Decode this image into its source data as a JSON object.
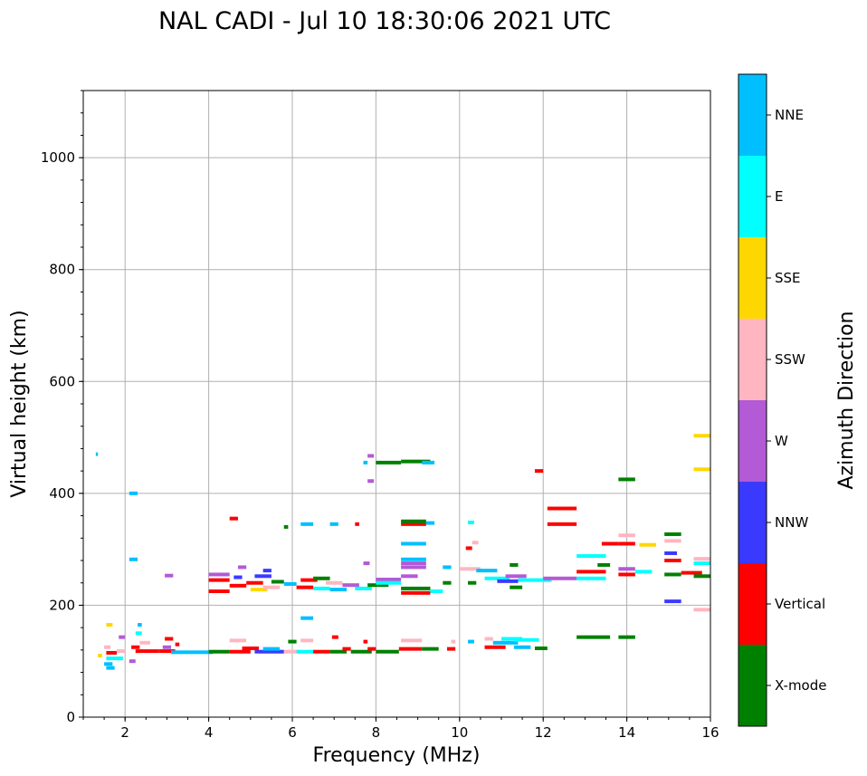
{
  "chart_data": {
    "type": "scatter",
    "title": "NAL CADI - Jul 10 18:30:06 2021 UTC",
    "xlabel": "Frequency (MHz)",
    "ylabel": "Virtual height (km)",
    "xlim": [
      1,
      16
    ],
    "ylim": [
      0,
      1120
    ],
    "xticks": [
      2,
      4,
      6,
      8,
      10,
      12,
      14,
      16
    ],
    "yticks": [
      0,
      200,
      400,
      600,
      800,
      1000
    ],
    "grid": true,
    "colorbar": {
      "label": "Azimuth Direction",
      "categories": [
        {
          "name": "X-mode",
          "color": "#008000"
        },
        {
          "name": "Vertical",
          "color": "#ff0000"
        },
        {
          "name": "NNW",
          "color": "#3a3aff"
        },
        {
          "name": "W",
          "color": "#b35ad6"
        },
        {
          "name": "SSW",
          "color": "#ffb6c1"
        },
        {
          "name": "SSE",
          "color": "#ffd700"
        },
        {
          "name": "E",
          "color": "#00ffff"
        },
        {
          "name": "NNE",
          "color": "#00bfff"
        }
      ]
    },
    "segments": [
      {
        "f0": 1.55,
        "f1": 1.75,
        "h": 88,
        "c": "NNE"
      },
      {
        "f0": 1.5,
        "f1": 1.7,
        "h": 95,
        "c": "NNE"
      },
      {
        "f0": 1.35,
        "f1": 1.45,
        "h": 110,
        "c": "SSE"
      },
      {
        "f0": 1.55,
        "f1": 1.95,
        "h": 105,
        "c": "E"
      },
      {
        "f0": 1.55,
        "f1": 1.8,
        "h": 115,
        "c": "Vertical"
      },
      {
        "f0": 1.5,
        "f1": 1.65,
        "h": 125,
        "c": "SSW"
      },
      {
        "f0": 1.8,
        "f1": 2.0,
        "h": 118,
        "c": "SSW"
      },
      {
        "f0": 1.55,
        "f1": 1.7,
        "h": 165,
        "c": "SSE"
      },
      {
        "f0": 1.85,
        "f1": 2.0,
        "h": 143,
        "c": "W"
      },
      {
        "f0": 2.1,
        "f1": 2.25,
        "h": 100,
        "c": "W"
      },
      {
        "f0": 2.3,
        "f1": 2.4,
        "h": 165,
        "c": "NNE"
      },
      {
        "f0": 2.25,
        "f1": 2.4,
        "h": 150,
        "c": "E"
      },
      {
        "f0": 2.15,
        "f1": 2.35,
        "h": 125,
        "c": "Vertical"
      },
      {
        "f0": 2.25,
        "f1": 2.8,
        "h": 118,
        "c": "Vertical"
      },
      {
        "f0": 2.35,
        "f1": 2.6,
        "h": 133,
        "c": "SSW"
      },
      {
        "f0": 2.8,
        "f1": 3.2,
        "h": 118,
        "c": "Vertical"
      },
      {
        "f0": 2.9,
        "f1": 3.1,
        "h": 125,
        "c": "W"
      },
      {
        "f0": 2.95,
        "f1": 3.15,
        "h": 140,
        "c": "Vertical"
      },
      {
        "f0": 3.1,
        "f1": 4.1,
        "h": 116,
        "c": "NNE"
      },
      {
        "f0": 3.2,
        "f1": 3.3,
        "h": 130,
        "c": "Vertical"
      },
      {
        "f0": 4.0,
        "f1": 4.5,
        "h": 117,
        "c": "X-mode"
      },
      {
        "f0": 4.5,
        "f1": 5.0,
        "h": 117,
        "c": "Vertical"
      },
      {
        "f0": 4.5,
        "f1": 4.9,
        "h": 137,
        "c": "SSW"
      },
      {
        "f0": 4.8,
        "f1": 5.2,
        "h": 123,
        "c": "Vertical"
      },
      {
        "f0": 5.1,
        "f1": 5.8,
        "h": 117,
        "c": "NNW"
      },
      {
        "f0": 5.3,
        "f1": 5.7,
        "h": 122,
        "c": "NNE"
      },
      {
        "f0": 5.8,
        "f1": 6.2,
        "h": 117,
        "c": "SSW"
      },
      {
        "f0": 5.9,
        "f1": 6.1,
        "h": 135,
        "c": "X-mode"
      },
      {
        "f0": 6.1,
        "f1": 6.5,
        "h": 117,
        "c": "E"
      },
      {
        "f0": 6.2,
        "f1": 6.5,
        "h": 137,
        "c": "SSW"
      },
      {
        "f0": 6.5,
        "f1": 6.9,
        "h": 117,
        "c": "Vertical"
      },
      {
        "f0": 6.9,
        "f1": 7.3,
        "h": 117,
        "c": "X-mode"
      },
      {
        "f0": 6.95,
        "f1": 7.1,
        "h": 143,
        "c": "Vertical"
      },
      {
        "f0": 7.2,
        "f1": 7.4,
        "h": 122,
        "c": "Vertical"
      },
      {
        "f0": 7.4,
        "f1": 7.9,
        "h": 117,
        "c": "X-mode"
      },
      {
        "f0": 7.7,
        "f1": 7.8,
        "h": 135,
        "c": "Vertical"
      },
      {
        "f0": 7.8,
        "f1": 8.0,
        "h": 122,
        "c": "Vertical"
      },
      {
        "f0": 8.0,
        "f1": 8.55,
        "h": 117,
        "c": "X-mode"
      },
      {
        "f0": 8.55,
        "f1": 9.1,
        "h": 122,
        "c": "Vertical"
      },
      {
        "f0": 8.6,
        "f1": 9.1,
        "h": 137,
        "c": "SSW"
      },
      {
        "f0": 9.1,
        "f1": 9.5,
        "h": 122,
        "c": "X-mode"
      },
      {
        "f0": 9.7,
        "f1": 9.9,
        "h": 122,
        "c": "Vertical"
      },
      {
        "f0": 9.8,
        "f1": 9.9,
        "h": 135,
        "c": "SSW"
      },
      {
        "f0": 10.2,
        "f1": 10.35,
        "h": 135,
        "c": "NNE"
      },
      {
        "f0": 10.6,
        "f1": 10.8,
        "h": 140,
        "c": "SSW"
      },
      {
        "f0": 10.6,
        "f1": 11.1,
        "h": 125,
        "c": "Vertical"
      },
      {
        "f0": 10.8,
        "f1": 11.4,
        "h": 133,
        "c": "NNE"
      },
      {
        "f0": 11.0,
        "f1": 11.5,
        "h": 140,
        "c": "E"
      },
      {
        "f0": 11.3,
        "f1": 11.9,
        "h": 138,
        "c": "E"
      },
      {
        "f0": 11.3,
        "f1": 11.7,
        "h": 125,
        "c": "NNE"
      },
      {
        "f0": 11.8,
        "f1": 12.1,
        "h": 123,
        "c": "X-mode"
      },
      {
        "f0": 12.8,
        "f1": 13.6,
        "h": 143,
        "c": "X-mode"
      },
      {
        "f0": 13.8,
        "f1": 14.2,
        "h": 143,
        "c": "X-mode"
      },
      {
        "f0": 4.0,
        "f1": 4.5,
        "h": 225,
        "c": "Vertical"
      },
      {
        "f0": 4.0,
        "f1": 4.5,
        "h": 245,
        "c": "Vertical"
      },
      {
        "f0": 4.0,
        "f1": 4.5,
        "h": 255,
        "c": "W"
      },
      {
        "f0": 4.5,
        "f1": 4.9,
        "h": 235,
        "c": "Vertical"
      },
      {
        "f0": 4.6,
        "f1": 4.8,
        "h": 250,
        "c": "NNW"
      },
      {
        "f0": 4.9,
        "f1": 5.3,
        "h": 240,
        "c": "Vertical"
      },
      {
        "f0": 5.0,
        "f1": 5.4,
        "h": 228,
        "c": "SSE"
      },
      {
        "f0": 5.1,
        "f1": 5.5,
        "h": 252,
        "c": "NNW"
      },
      {
        "f0": 5.3,
        "f1": 5.7,
        "h": 232,
        "c": "SSW"
      },
      {
        "f0": 5.5,
        "f1": 5.8,
        "h": 242,
        "c": "X-mode"
      },
      {
        "f0": 5.8,
        "f1": 6.1,
        "h": 238,
        "c": "NNE"
      },
      {
        "f0": 6.1,
        "f1": 6.5,
        "h": 232,
        "c": "Vertical"
      },
      {
        "f0": 6.2,
        "f1": 6.6,
        "h": 245,
        "c": "Vertical"
      },
      {
        "f0": 6.5,
        "f1": 6.9,
        "h": 230,
        "c": "E"
      },
      {
        "f0": 6.5,
        "f1": 6.9,
        "h": 248,
        "c": "X-mode"
      },
      {
        "f0": 6.8,
        "f1": 7.2,
        "h": 240,
        "c": "SSW"
      },
      {
        "f0": 6.9,
        "f1": 7.3,
        "h": 228,
        "c": "NNE"
      },
      {
        "f0": 7.2,
        "f1": 7.6,
        "h": 236,
        "c": "W"
      },
      {
        "f0": 7.5,
        "f1": 7.9,
        "h": 230,
        "c": "E"
      },
      {
        "f0": 7.8,
        "f1": 8.3,
        "h": 236,
        "c": "X-mode"
      },
      {
        "f0": 8.0,
        "f1": 8.6,
        "h": 246,
        "c": "W"
      },
      {
        "f0": 8.0,
        "f1": 8.6,
        "h": 240,
        "c": "E"
      },
      {
        "f0": 8.6,
        "f1": 9.3,
        "h": 230,
        "c": "X-mode"
      },
      {
        "f0": 8.6,
        "f1": 9.3,
        "h": 222,
        "c": "Vertical"
      },
      {
        "f0": 8.6,
        "f1": 9.0,
        "h": 252,
        "c": "W"
      },
      {
        "f0": 8.6,
        "f1": 9.2,
        "h": 268,
        "c": "W"
      },
      {
        "f0": 8.6,
        "f1": 9.2,
        "h": 275,
        "c": "W"
      },
      {
        "f0": 9.3,
        "f1": 9.6,
        "h": 225,
        "c": "E"
      },
      {
        "f0": 9.6,
        "f1": 9.8,
        "h": 240,
        "c": "X-mode"
      },
      {
        "f0": 9.6,
        "f1": 9.8,
        "h": 268,
        "c": "NNE"
      },
      {
        "f0": 10.0,
        "f1": 10.5,
        "h": 265,
        "c": "SSW"
      },
      {
        "f0": 10.2,
        "f1": 10.4,
        "h": 240,
        "c": "X-mode"
      },
      {
        "f0": 10.4,
        "f1": 10.9,
        "h": 262,
        "c": "NNE"
      },
      {
        "f0": 10.6,
        "f1": 11.2,
        "h": 248,
        "c": "E"
      },
      {
        "f0": 10.9,
        "f1": 11.4,
        "h": 243,
        "c": "NNW"
      },
      {
        "f0": 11.1,
        "f1": 11.6,
        "h": 252,
        "c": "W"
      },
      {
        "f0": 11.2,
        "f1": 11.4,
        "h": 272,
        "c": "X-mode"
      },
      {
        "f0": 11.2,
        "f1": 11.5,
        "h": 232,
        "c": "X-mode"
      },
      {
        "f0": 11.4,
        "f1": 12.2,
        "h": 245,
        "c": "E"
      },
      {
        "f0": 12.0,
        "f1": 12.8,
        "h": 248,
        "c": "W"
      },
      {
        "f0": 12.8,
        "f1": 13.5,
        "h": 248,
        "c": "E"
      },
      {
        "f0": 12.8,
        "f1": 13.5,
        "h": 260,
        "c": "Vertical"
      },
      {
        "f0": 12.8,
        "f1": 13.5,
        "h": 288,
        "c": "E"
      },
      {
        "f0": 13.3,
        "f1": 13.6,
        "h": 272,
        "c": "X-mode"
      },
      {
        "f0": 13.4,
        "f1": 13.8,
        "h": 310,
        "c": "Vertical"
      },
      {
        "f0": 13.8,
        "f1": 14.2,
        "h": 265,
        "c": "W"
      },
      {
        "f0": 13.8,
        "f1": 14.2,
        "h": 255,
        "c": "Vertical"
      },
      {
        "f0": 13.8,
        "f1": 14.2,
        "h": 310,
        "c": "Vertical"
      },
      {
        "f0": 13.8,
        "f1": 14.2,
        "h": 325,
        "c": "SSW"
      },
      {
        "f0": 14.2,
        "f1": 14.6,
        "h": 260,
        "c": "E"
      },
      {
        "f0": 14.3,
        "f1": 14.7,
        "h": 308,
        "c": "SSE"
      },
      {
        "f0": 14.9,
        "f1": 15.3,
        "h": 255,
        "c": "X-mode"
      },
      {
        "f0": 14.9,
        "f1": 15.3,
        "h": 280,
        "c": "Vertical"
      },
      {
        "f0": 14.9,
        "f1": 15.2,
        "h": 293,
        "c": "NNW"
      },
      {
        "f0": 14.9,
        "f1": 15.3,
        "h": 315,
        "c": "SSW"
      },
      {
        "f0": 14.9,
        "f1": 15.3,
        "h": 327,
        "c": "X-mode"
      },
      {
        "f0": 14.9,
        "f1": 15.3,
        "h": 207,
        "c": "NNW"
      },
      {
        "f0": 15.3,
        "f1": 15.8,
        "h": 258,
        "c": "Vertical"
      },
      {
        "f0": 15.6,
        "f1": 16.0,
        "h": 252,
        "c": "X-mode"
      },
      {
        "f0": 15.6,
        "f1": 16.0,
        "h": 275,
        "c": "E"
      },
      {
        "f0": 15.6,
        "f1": 16.0,
        "h": 283,
        "c": "SSW"
      },
      {
        "f0": 15.6,
        "f1": 16.0,
        "h": 192,
        "c": "SSW"
      },
      {
        "f0": 15.6,
        "f1": 16.0,
        "h": 443,
        "c": "SSE"
      },
      {
        "f0": 15.6,
        "f1": 16.0,
        "h": 503,
        "c": "SSE"
      },
      {
        "f0": 12.1,
        "f1": 12.8,
        "h": 373,
        "c": "Vertical"
      },
      {
        "f0": 12.1,
        "f1": 12.8,
        "h": 345,
        "c": "Vertical"
      },
      {
        "f0": 11.8,
        "f1": 12.0,
        "h": 440,
        "c": "Vertical"
      },
      {
        "f0": 13.8,
        "f1": 14.2,
        "h": 425,
        "c": "X-mode"
      },
      {
        "f0": 8.6,
        "f1": 9.2,
        "h": 345,
        "c": "Vertical"
      },
      {
        "f0": 8.6,
        "f1": 9.2,
        "h": 350,
        "c": "X-mode"
      },
      {
        "f0": 9.2,
        "f1": 9.4,
        "h": 347,
        "c": "NNE"
      },
      {
        "f0": 8.6,
        "f1": 9.2,
        "h": 310,
        "c": "NNE"
      },
      {
        "f0": 8.6,
        "f1": 9.2,
        "h": 282,
        "c": "NNE"
      },
      {
        "f0": 8.0,
        "f1": 8.6,
        "h": 455,
        "c": "X-mode"
      },
      {
        "f0": 8.6,
        "f1": 9.3,
        "h": 457,
        "c": "X-mode"
      },
      {
        "f0": 9.1,
        "f1": 9.4,
        "h": 455,
        "c": "NNE"
      },
      {
        "f0": 7.8,
        "f1": 7.95,
        "h": 467,
        "c": "W"
      },
      {
        "f0": 7.8,
        "f1": 7.95,
        "h": 422,
        "c": "W"
      },
      {
        "f0": 7.7,
        "f1": 7.8,
        "h": 455,
        "c": "NNE"
      },
      {
        "f0": 6.2,
        "f1": 6.5,
        "h": 345,
        "c": "NNE"
      },
      {
        "f0": 6.9,
        "f1": 7.1,
        "h": 345,
        "c": "NNE"
      },
      {
        "f0": 7.5,
        "f1": 7.6,
        "h": 345,
        "c": "Vertical"
      },
      {
        "f0": 4.5,
        "f1": 4.7,
        "h": 355,
        "c": "Vertical"
      },
      {
        "f0": 5.8,
        "f1": 5.9,
        "h": 340,
        "c": "X-mode"
      },
      {
        "f0": 6.2,
        "f1": 6.5,
        "h": 177,
        "c": "NNE"
      },
      {
        "f0": 10.2,
        "f1": 10.35,
        "h": 348,
        "c": "E"
      },
      {
        "f0": 10.3,
        "f1": 10.45,
        "h": 312,
        "c": "SSW"
      },
      {
        "f0": 10.15,
        "f1": 10.3,
        "h": 302,
        "c": "Vertical"
      },
      {
        "f0": 2.1,
        "f1": 2.3,
        "h": 400,
        "c": "NNE"
      },
      {
        "f0": 2.1,
        "f1": 2.3,
        "h": 282,
        "c": "NNE"
      },
      {
        "f0": 1.3,
        "f1": 1.35,
        "h": 470,
        "c": "NNE"
      },
      {
        "f0": 2.95,
        "f1": 3.15,
        "h": 253,
        "c": "W"
      },
      {
        "f0": 7.7,
        "f1": 7.85,
        "h": 275,
        "c": "W"
      },
      {
        "f0": 5.3,
        "f1": 5.5,
        "h": 262,
        "c": "NNW"
      },
      {
        "f0": 4.7,
        "f1": 4.9,
        "h": 268,
        "c": "W"
      }
    ]
  }
}
